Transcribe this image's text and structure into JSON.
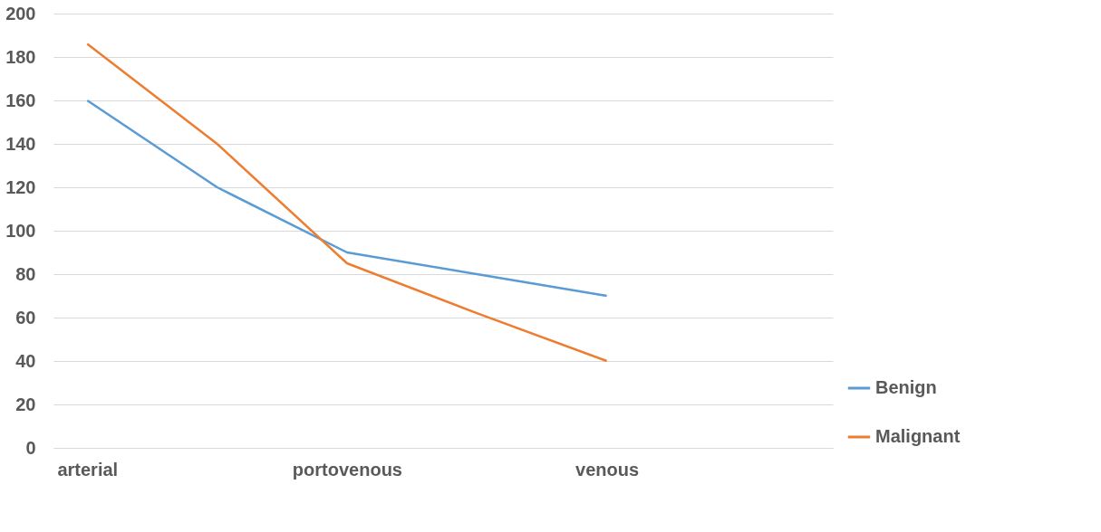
{
  "chart_data": {
    "type": "line",
    "categories": [
      "arterial",
      null,
      "portovenous",
      null,
      "venous",
      null
    ],
    "series": [
      {
        "name": "Benign",
        "color": "#5b9bd5",
        "values": [
          160,
          120,
          90,
          80,
          70,
          null
        ]
      },
      {
        "name": "Malignant",
        "color": "#ed7d31",
        "values": [
          186,
          140,
          85,
          62,
          40,
          null
        ]
      }
    ],
    "ylim": [
      0,
      200
    ],
    "yticks": [
      0,
      20,
      40,
      60,
      80,
      100,
      120,
      140,
      160,
      180,
      200
    ],
    "grid": "y",
    "legend": "bottom right",
    "marker": "none",
    "line_style": "solid"
  }
}
